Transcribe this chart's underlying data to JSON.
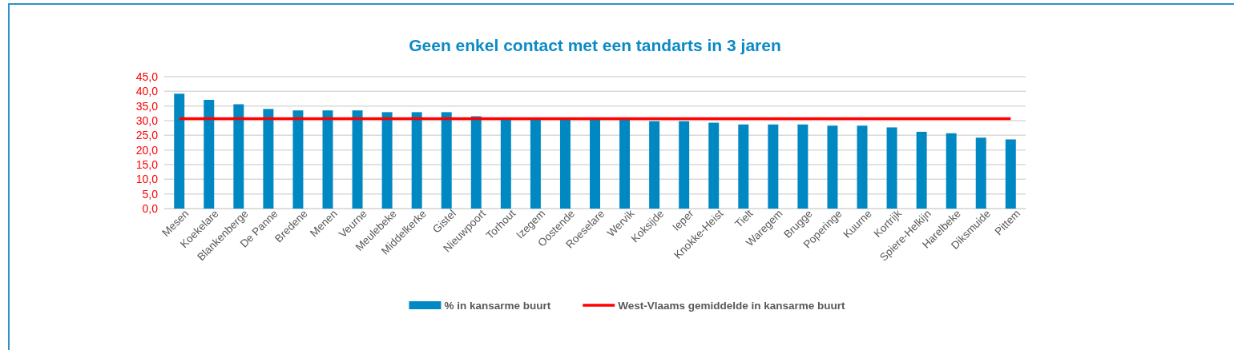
{
  "chart_data": {
    "type": "bar",
    "title": "Geen enkel contact met een tandarts in 3 jaren",
    "categories": [
      "Mesen",
      "Koekelare",
      "Blankenberge",
      "De Panne",
      "Bredene",
      "Menen",
      "Veurne",
      "Meulebeke",
      "Middelkerke",
      "Gistel",
      "Nieuwpoort",
      "Torhout",
      "Izegem",
      "Oostende",
      "Roeselare",
      "Wervik",
      "Koksijde",
      "Ieper",
      "Knokke-Heist",
      "Tielt",
      "Waregem",
      "Brugge",
      "Poperinge",
      "Kuurne",
      "Kortrijk",
      "Spiere-Helkijn",
      "Harelbeke",
      "Diksmuide",
      "Pittem"
    ],
    "series": [
      {
        "name": "% in kansarme buurt",
        "color": "#0088c2",
        "values": [
          39.2,
          37.1,
          35.6,
          34.0,
          33.5,
          33.5,
          33.5,
          32.9,
          32.9,
          32.9,
          31.5,
          30.6,
          30.6,
          30.6,
          30.6,
          30.6,
          29.8,
          29.8,
          29.3,
          28.7,
          28.7,
          28.7,
          28.3,
          28.3,
          27.7,
          26.2,
          25.7,
          24.2,
          23.6
        ]
      },
      {
        "name": "West-Vlaams gemiddelde in kansarme buurt",
        "color": "#ff0000",
        "type": "line",
        "values": [
          30.7,
          30.7,
          30.7,
          30.7,
          30.7,
          30.7,
          30.7,
          30.7,
          30.7,
          30.7,
          30.7,
          30.7,
          30.7,
          30.7,
          30.7,
          30.7,
          30.7,
          30.7,
          30.7,
          30.7,
          30.7,
          30.7,
          30.7,
          30.7,
          30.7,
          30.7,
          30.7,
          30.7,
          30.7
        ]
      }
    ],
    "ylim": [
      0,
      45
    ],
    "yticks": [
      {
        "value": 0,
        "label": "0,0"
      },
      {
        "value": 5,
        "label": "5,0"
      },
      {
        "value": 10,
        "label": "10,0"
      },
      {
        "value": 15,
        "label": "15,0"
      },
      {
        "value": 20,
        "label": "20,0"
      },
      {
        "value": 25,
        "label": "25,0"
      },
      {
        "value": 30,
        "label": "30,0"
      },
      {
        "value": 35,
        "label": "35,0"
      },
      {
        "value": 40,
        "label": "40,0"
      },
      {
        "value": 45,
        "label": "45,0"
      }
    ],
    "grid": "y",
    "legend": "bottom",
    "marker": "none",
    "line_style": "solid"
  }
}
